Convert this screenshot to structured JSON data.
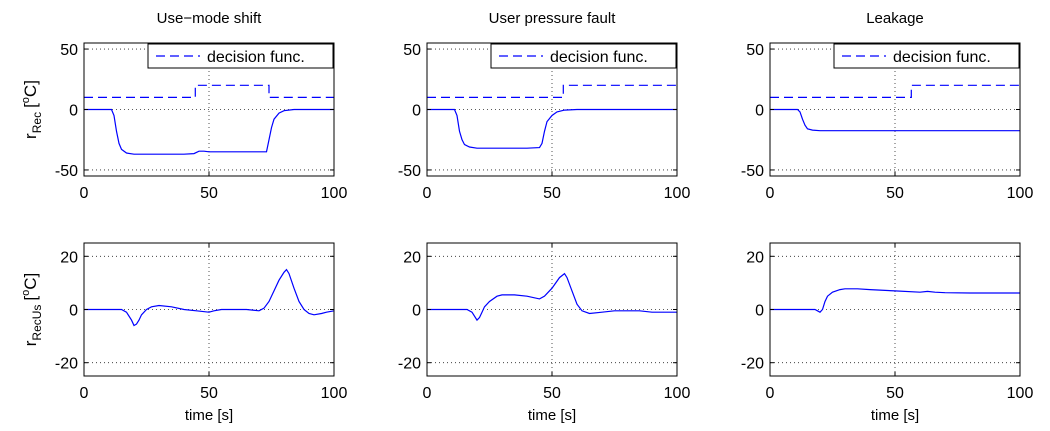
{
  "colors": {
    "series": "#0000ff",
    "axes": "#000000",
    "background": "#ffffff"
  },
  "legend_label": "decision func.",
  "rows": [
    {
      "ylabel_main": "r",
      "ylabel_sub": "Rec",
      "ylabel_unit_pre": "[",
      "ylabel_unit_sup": "o",
      "ylabel_unit_post": "C]"
    },
    {
      "ylabel_main": "r",
      "ylabel_sub": "RecUs",
      "ylabel_unit_pre": "[",
      "ylabel_unit_sup": "o",
      "ylabel_unit_post": "C]"
    }
  ],
  "columns": [
    {
      "title": "Use−mode shift"
    },
    {
      "title": "User pressure fault"
    },
    {
      "title": "Leakage"
    }
  ],
  "chart_data": [
    {
      "type": "line",
      "panel": "row1-col1",
      "title": "Use−mode shift",
      "xlabel": "",
      "ylabel": "r_Rec [oC]",
      "xlim": [
        0,
        100
      ],
      "ylim": [
        -55,
        55
      ],
      "xticks": [
        0,
        50,
        100
      ],
      "yticks": [
        -50,
        0,
        50
      ],
      "grid": true,
      "legend": "top-right",
      "series": [
        {
          "name": "",
          "style": "solid",
          "x": [
            0,
            11,
            12,
            13,
            14,
            15,
            17,
            20,
            25,
            30,
            40,
            44,
            46,
            48,
            50,
            60,
            70,
            73,
            74,
            75,
            76,
            78,
            80,
            84,
            90,
            100
          ],
          "y": [
            0,
            0,
            -5,
            -18,
            -28,
            -33,
            -36,
            -37,
            -37,
            -37,
            -37,
            -36.5,
            -34.5,
            -34.5,
            -35,
            -35,
            -35,
            -35,
            -25,
            -15,
            -8,
            -3,
            -1,
            0,
            0,
            0
          ]
        },
        {
          "name": "decision func.",
          "style": "dashed",
          "x": [
            0,
            44.5,
            44.5,
            74,
            74,
            100
          ],
          "y": [
            10,
            10,
            20,
            20,
            10,
            10
          ]
        }
      ]
    },
    {
      "type": "line",
      "panel": "row1-col2",
      "title": "User pressure fault",
      "xlabel": "",
      "ylabel": "",
      "xlim": [
        0,
        100
      ],
      "ylim": [
        -55,
        55
      ],
      "xticks": [
        0,
        50,
        100
      ],
      "yticks": [
        -50,
        0,
        50
      ],
      "grid": true,
      "legend": "top-right",
      "series": [
        {
          "name": "",
          "style": "solid",
          "x": [
            0,
            11,
            12,
            13,
            14,
            15,
            17,
            20,
            30,
            40,
            45,
            46,
            47,
            48,
            50,
            52,
            55,
            60,
            70,
            80,
            90,
            100
          ],
          "y": [
            0,
            0,
            -5,
            -18,
            -25,
            -29,
            -31,
            -32,
            -32,
            -32,
            -31.5,
            -28,
            -18,
            -10,
            -5,
            -2,
            -0.5,
            0,
            0,
            0,
            0,
            0
          ]
        },
        {
          "name": "decision func.",
          "style": "dashed",
          "x": [
            0,
            54.5,
            54.5,
            100
          ],
          "y": [
            10,
            10,
            20,
            20
          ]
        }
      ]
    },
    {
      "type": "line",
      "panel": "row1-col3",
      "title": "Leakage",
      "xlabel": "",
      "ylabel": "",
      "xlim": [
        0,
        100
      ],
      "ylim": [
        -55,
        55
      ],
      "xticks": [
        0,
        50,
        100
      ],
      "yticks": [
        -50,
        0,
        50
      ],
      "grid": true,
      "legend": "top-right",
      "series": [
        {
          "name": "",
          "style": "solid",
          "x": [
            0,
            11,
            12,
            13,
            14,
            15,
            17,
            20,
            30,
            50,
            70,
            100
          ],
          "y": [
            0,
            0,
            -2,
            -8,
            -13,
            -16,
            -17,
            -17.5,
            -17.5,
            -17.5,
            -17.5,
            -17.5
          ]
        },
        {
          "name": "decision func.",
          "style": "dashed",
          "x": [
            0,
            56.5,
            56.5,
            100
          ],
          "y": [
            10,
            10,
            20,
            20
          ]
        }
      ]
    },
    {
      "type": "line",
      "panel": "row2-col1",
      "title": "",
      "xlabel": "time [s]",
      "ylabel": "r_RecUs [oC]",
      "xlim": [
        0,
        100
      ],
      "ylim": [
        -25,
        25
      ],
      "xticks": [
        0,
        50,
        100
      ],
      "yticks": [
        -20,
        0,
        20
      ],
      "grid": true,
      "series": [
        {
          "name": "",
          "style": "solid",
          "x": [
            0,
            15,
            17,
            19,
            20,
            21,
            22,
            23,
            25,
            27,
            30,
            35,
            40,
            45,
            50,
            52,
            55,
            58,
            60,
            65,
            70,
            72,
            74,
            76,
            78,
            80,
            81,
            82,
            84,
            86,
            88,
            90,
            92,
            95,
            97,
            100
          ],
          "y": [
            0,
            0,
            -1,
            -4,
            -6,
            -5.5,
            -4,
            -2,
            0,
            1,
            1.5,
            1,
            0,
            -0.5,
            -1,
            -0.5,
            0,
            0,
            0,
            0,
            -0.5,
            0.5,
            3,
            7,
            11,
            14,
            15,
            13.5,
            8,
            3,
            0,
            -1.5,
            -2,
            -1.5,
            -1,
            -0.5
          ]
        }
      ]
    },
    {
      "type": "line",
      "panel": "row2-col2",
      "title": "",
      "xlabel": "time [s]",
      "ylabel": "",
      "xlim": [
        0,
        100
      ],
      "ylim": [
        -25,
        25
      ],
      "xticks": [
        0,
        50,
        100
      ],
      "yticks": [
        -20,
        0,
        20
      ],
      "grid": true,
      "series": [
        {
          "name": "",
          "style": "solid",
          "x": [
            0,
            16,
            18,
            20,
            21,
            22,
            23,
            25,
            28,
            30,
            35,
            40,
            45,
            47,
            50,
            53,
            55,
            56,
            58,
            60,
            62,
            65,
            70,
            75,
            80,
            85,
            90,
            100
          ],
          "y": [
            0,
            0,
            -1,
            -4,
            -3,
            -1,
            1,
            3,
            5,
            5.5,
            5.5,
            5,
            4,
            5,
            8,
            12,
            13.5,
            12,
            7,
            2,
            -0.5,
            -1.5,
            -1,
            -0.5,
            -0.5,
            -0.5,
            -1,
            -1
          ]
        }
      ]
    },
    {
      "type": "line",
      "panel": "row2-col3",
      "title": "",
      "xlabel": "time [s]",
      "ylabel": "",
      "xlim": [
        0,
        100
      ],
      "ylim": [
        -25,
        25
      ],
      "xticks": [
        0,
        50,
        100
      ],
      "yticks": [
        -20,
        0,
        20
      ],
      "grid": true,
      "series": [
        {
          "name": "",
          "style": "solid",
          "x": [
            0,
            18,
            20,
            21,
            22,
            23,
            25,
            28,
            30,
            35,
            40,
            50,
            60,
            63,
            66,
            70,
            80,
            90,
            100
          ],
          "y": [
            0,
            0,
            -1,
            0,
            3,
            5,
            6.5,
            7.5,
            7.8,
            7.8,
            7.5,
            7,
            6.5,
            6.8,
            6.5,
            6.3,
            6.2,
            6.2,
            6.2
          ]
        }
      ]
    }
  ]
}
